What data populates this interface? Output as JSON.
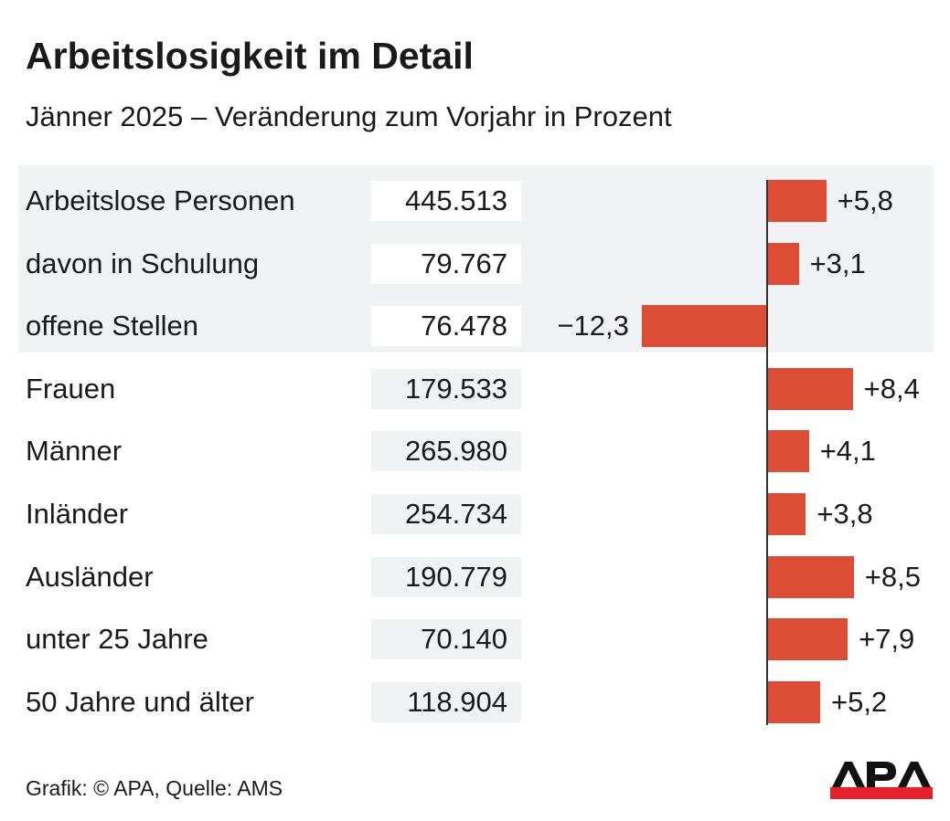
{
  "chart_data": {
    "type": "bar",
    "orientation": "horizontal",
    "title": "Arbeitslosigkeit im Detail",
    "subtitle": "Jänner 2025 – Veränderung zum Vorjahr in Prozent",
    "categories": [
      "Arbeitslose Personen",
      "davon in Schulung",
      "offene Stellen",
      "Frauen",
      "Männer",
      "Inländer",
      "Ausländer",
      "unter 25 Jahre",
      "50 Jahre und älter"
    ],
    "absolute_values": [
      "445.513",
      "79.767",
      "76.478",
      "179.533",
      "265.980",
      "254.734",
      "190.779",
      "70.140",
      "118.904"
    ],
    "values": [
      5.8,
      3.1,
      -12.3,
      8.4,
      4.1,
      3.8,
      8.5,
      7.9,
      5.2
    ],
    "value_labels": [
      "+5,8",
      "+3,1",
      "−12,3",
      "+8,4",
      "+4,1",
      "+3,8",
      "+8,5",
      "+7,9",
      "+5,2"
    ],
    "highlighted_rows": [
      0,
      1,
      2
    ],
    "bar_color": "#dd4d36",
    "grid": false
  },
  "footer": {
    "source": "Grafik: © APA, Quelle: AMS",
    "logo_text": "APA"
  }
}
